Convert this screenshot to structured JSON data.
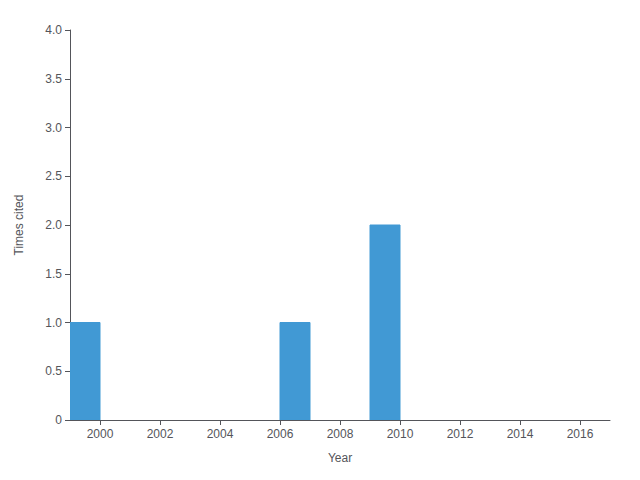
{
  "chart_data": {
    "type": "bar",
    "xlabel": "Year",
    "ylabel": "Times cited",
    "x": [
      1999,
      2006,
      2009
    ],
    "bar_width": 1.0,
    "values": [
      1,
      1,
      2
    ],
    "color": "#4199D4",
    "xlim": [
      1999,
      2017
    ],
    "xticks": [
      2000,
      2002,
      2004,
      2006,
      2008,
      2010,
      2012,
      2014,
      2016
    ],
    "ylim": [
      0,
      4
    ],
    "yticks": [
      0,
      0.5,
      {
        "value": 1.0,
        "label": "1.0"
      },
      1.5,
      {
        "value": 2,
        "label": "2.0"
      },
      2.5,
      {
        "value": 3,
        "label": "3.0"
      },
      3.5,
      {
        "value": 4,
        "label": "4.0"
      }
    ],
    "grid": false
  }
}
